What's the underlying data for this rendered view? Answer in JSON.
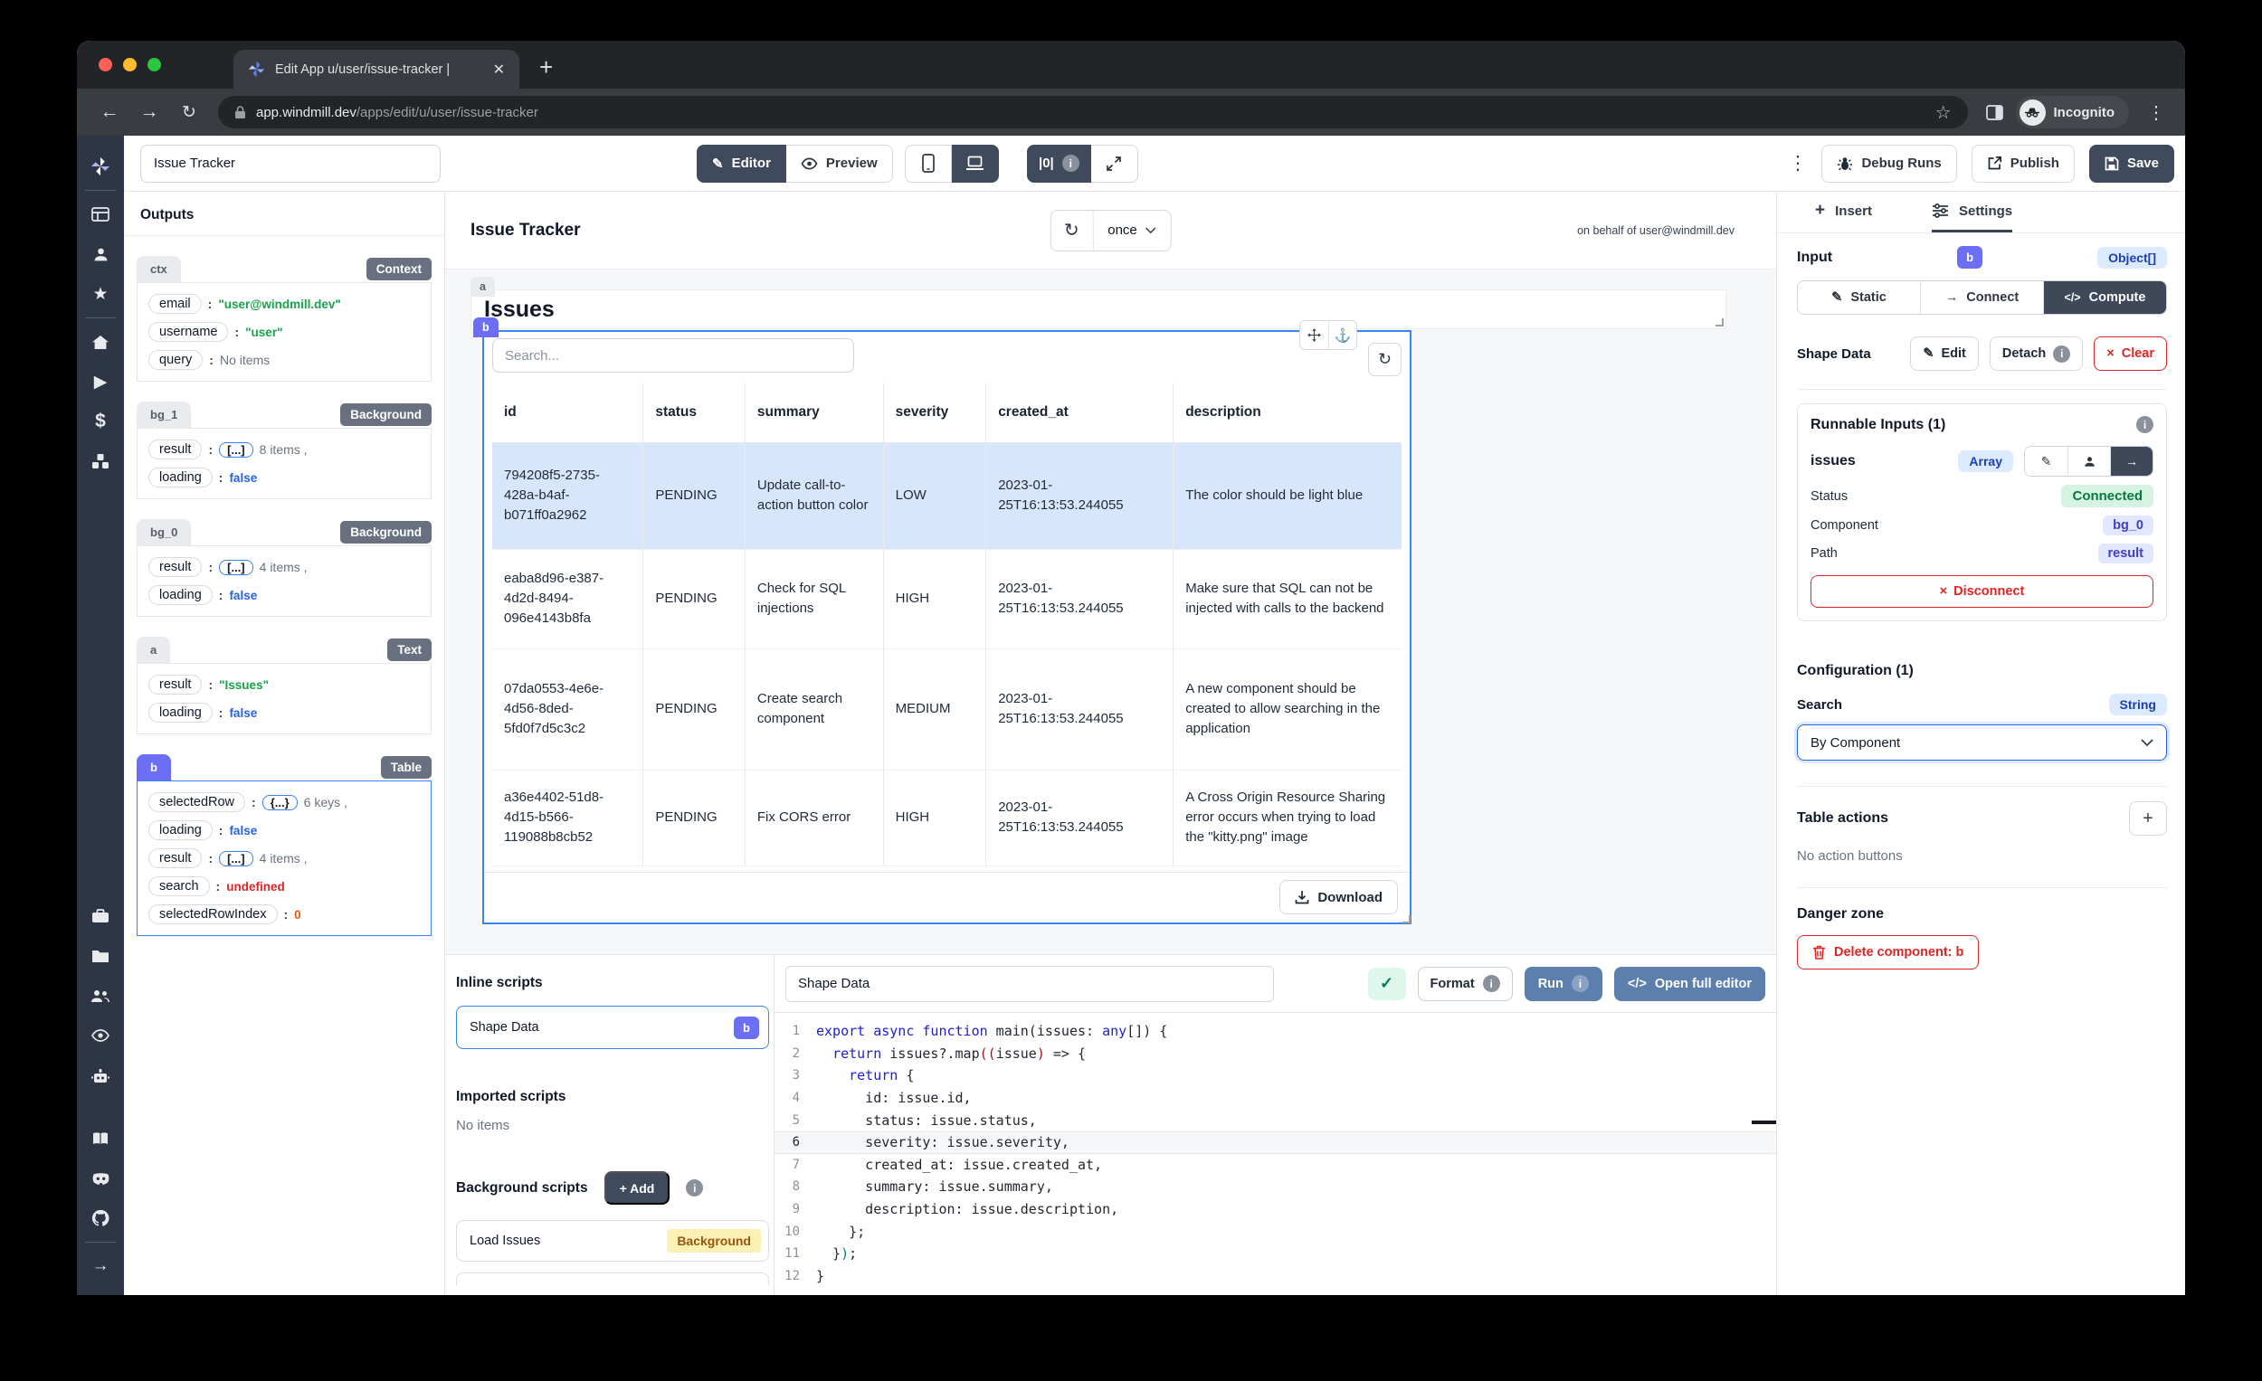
{
  "browser": {
    "tab_title": "Edit App u/user/issue-tracker |",
    "url_domain": "app.windmill.dev",
    "url_path": "/apps/edit/u/user/issue-tracker",
    "incognito_label": "Incognito"
  },
  "toolbar": {
    "app_name_value": "Issue Tracker",
    "editor_label": "Editor",
    "preview_label": "Preview",
    "zero_toggle_glyph": "|0|",
    "debug_runs_label": "Debug Runs",
    "publish_label": "Publish",
    "save_label": "Save"
  },
  "outputs": {
    "title": "Outputs",
    "sections": {
      "ctx": {
        "id": "ctx",
        "badge": "Context",
        "rows": {
          "email": {
            "k": "email",
            "v": "\"user@windmill.dev\""
          },
          "username": {
            "k": "username",
            "v": "\"user\""
          },
          "query": {
            "k": "query",
            "v": "No items"
          }
        }
      },
      "bg_1": {
        "id": "bg_1",
        "badge": "Background",
        "rows": {
          "result": {
            "k": "result",
            "chip": "[...]",
            "suffix": "8 items ,"
          },
          "loading": {
            "k": "loading",
            "v": "false"
          }
        }
      },
      "bg_0": {
        "id": "bg_0",
        "badge": "Background",
        "rows": {
          "result": {
            "k": "result",
            "chip": "[...]",
            "suffix": "4 items ,"
          },
          "loading": {
            "k": "loading",
            "v": "false"
          }
        }
      },
      "a": {
        "id": "a",
        "badge": "Text",
        "rows": {
          "result": {
            "k": "result",
            "v": "\"Issues\""
          },
          "loading": {
            "k": "loading",
            "v": "false"
          }
        }
      },
      "b": {
        "id": "b",
        "badge": "Table",
        "rows": {
          "selectedRow": {
            "k": "selectedRow",
            "chip": "{...}",
            "suffix": "6 keys ,"
          },
          "loading": {
            "k": "loading",
            "v": "false"
          },
          "result": {
            "k": "result",
            "chip": "[...]",
            "suffix": "4 items ,"
          },
          "search": {
            "k": "search",
            "v": "undefined"
          },
          "selectedRowIndex": {
            "k": "selectedRowIndex",
            "v": "0"
          }
        }
      }
    }
  },
  "canvas": {
    "app_title": "Issue Tracker",
    "refresh_mode": "once",
    "on_behalf": "on behalf of user@windmill.dev",
    "component_a_chip": "a",
    "component_a_title": "Issues",
    "component_b_chip": "b"
  },
  "table": {
    "search_placeholder": "Search...",
    "columns": [
      "id",
      "status",
      "summary",
      "severity",
      "created_at",
      "description"
    ],
    "rows": [
      {
        "id": "794208f5-2735-428a-b4af-b071ff0a2962",
        "status": "PENDING",
        "summary": "Update call-to-action button color",
        "severity": "LOW",
        "created_at": "2023-01-25T16:13:53.244055",
        "description": "The color should be light blue"
      },
      {
        "id": "eaba8d96-e387-4d2d-8494-096e4143b8fa",
        "status": "PENDING",
        "summary": "Check for SQL injections",
        "severity": "HIGH",
        "created_at": "2023-01-25T16:13:53.244055",
        "description": "Make sure that SQL can not be injected with calls to the backend"
      },
      {
        "id": "07da0553-4e6e-4d56-8ded-5fd0f7d5c3c2",
        "status": "PENDING",
        "summary": "Create search component",
        "severity": "MEDIUM",
        "created_at": "2023-01-25T16:13:53.244055",
        "description": "A new component should be created to allow searching in the application"
      },
      {
        "id": "a36e4402-51d8-4d15-b566-119088b8cb52",
        "status": "PENDING",
        "summary": "Fix CORS error",
        "severity": "HIGH",
        "created_at": "2023-01-25T16:13:53.244055",
        "description": "A Cross Origin Resource Sharing error occurs when trying to load the \"kitty.png\" image"
      }
    ],
    "selected_row_index": 0,
    "download_label": "Download"
  },
  "scripts": {
    "inline_title": "Inline scripts",
    "inline_item_name": "Shape Data",
    "inline_item_chip": "b",
    "imported_title": "Imported scripts",
    "imported_empty": "No items",
    "background_title": "Background scripts",
    "add_label": "+ Add",
    "background_item_name": "Load Issues",
    "background_item_badge": "Background"
  },
  "code": {
    "name_value": "Shape Data",
    "format_label": "Format",
    "run_label": "Run",
    "open_full_label": "Open full editor",
    "active_line": 6,
    "lines": [
      {
        "n": 1,
        "t": [
          [
            "k",
            "export"
          ],
          [
            "d",
            " "
          ],
          [
            "k",
            "async"
          ],
          [
            "d",
            " "
          ],
          [
            "k",
            "function"
          ],
          [
            "d",
            " main(issues: "
          ],
          [
            "k",
            "any"
          ],
          [
            "d",
            "[]) {"
          ]
        ]
      },
      {
        "n": 2,
        "t": [
          [
            "d",
            "  "
          ],
          [
            "k",
            "return"
          ],
          [
            "d",
            " issues?.map"
          ],
          [
            "m",
            "(("
          ],
          [
            "d",
            "issue"
          ],
          [
            "m",
            ")"
          ],
          [
            "d",
            " => {"
          ]
        ]
      },
      {
        "n": 3,
        "t": [
          [
            "d",
            "    "
          ],
          [
            "k",
            "return"
          ],
          [
            "d",
            " {"
          ]
        ]
      },
      {
        "n": 4,
        "t": [
          [
            "d",
            "      id: issue.id,"
          ]
        ]
      },
      {
        "n": 5,
        "t": [
          [
            "d",
            "      status: issue.status,"
          ]
        ]
      },
      {
        "n": 6,
        "t": [
          [
            "d",
            "      severity: issue.severity,"
          ]
        ]
      },
      {
        "n": 7,
        "t": [
          [
            "d",
            "      created_at: issue.created_at,"
          ]
        ]
      },
      {
        "n": 8,
        "t": [
          [
            "d",
            "      summary: issue.summary,"
          ]
        ]
      },
      {
        "n": 9,
        "t": [
          [
            "d",
            "      description: issue.description,"
          ]
        ]
      },
      {
        "n": 10,
        "t": [
          [
            "d",
            "    };"
          ]
        ]
      },
      {
        "n": 11,
        "t": [
          [
            "d",
            "  }"
          ],
          [
            "g",
            ")"
          ],
          [
            "d",
            ";"
          ]
        ]
      },
      {
        "n": 12,
        "t": [
          [
            "d",
            "}"
          ]
        ]
      }
    ]
  },
  "panel": {
    "insert_tab": "Insert",
    "settings_tab": "Settings",
    "input_label": "Input",
    "input_chip": "b",
    "input_type": "Object[]",
    "static_label": "Static",
    "connect_label": "Connect",
    "compute_label": "Compute",
    "shape_label": "Shape Data",
    "edit_label": "Edit",
    "detach_label": "Detach",
    "clear_label": "Clear",
    "runnable_title": "Runnable Inputs (1)",
    "runnable_input_name": "issues",
    "runnable_input_type": "Array",
    "status_label": "Status",
    "status_value": "Connected",
    "component_label": "Component",
    "component_value": "bg_0",
    "path_label": "Path",
    "path_value": "result",
    "disconnect_label": "Disconnect",
    "config_title": "Configuration (1)",
    "search_label": "Search",
    "search_type": "String",
    "search_value": "By Component",
    "table_actions_title": "Table actions",
    "no_actions": "No action buttons",
    "danger_title": "Danger zone",
    "delete_label": "Delete component: b"
  },
  "colors": {
    "accent_indigo": "#6c6ff5",
    "accent_blue": "#3b82f6",
    "danger_red": "#e02424",
    "dark_slate": "#3f4a5c",
    "run_blue": "#5d7fad"
  }
}
